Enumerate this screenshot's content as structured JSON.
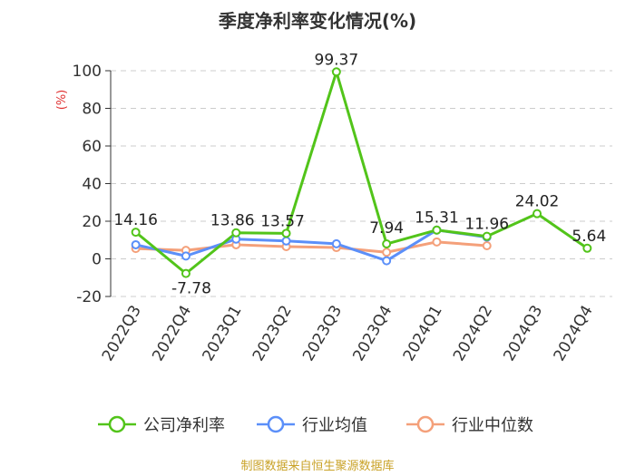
{
  "chart_data": {
    "type": "line",
    "title": "季度净利率变化情况(%)",
    "ylabel": "(%)",
    "xlabel": "",
    "ylim": [
      -20,
      100
    ],
    "yticks": [
      -20,
      0,
      20,
      40,
      60,
      80,
      100
    ],
    "categories": [
      "2022Q3",
      "2022Q4",
      "2023Q1",
      "2023Q2",
      "2023Q3",
      "2023Q4",
      "2024Q1",
      "2024Q2",
      "2024Q3",
      "2024Q4"
    ],
    "grid": true,
    "legend_position": "bottom",
    "series": [
      {
        "name": "公司净利率",
        "color": "#52c41a",
        "values": [
          14.16,
          -7.78,
          13.86,
          13.57,
          99.37,
          7.94,
          15.31,
          11.96,
          24.02,
          5.64
        ],
        "labels": [
          "14.16",
          "-7.78",
          "13.86",
          "13.57",
          "99.37",
          "7.94",
          "15.31",
          "11.96",
          "24.02",
          "5.64"
        ]
      },
      {
        "name": "行业均值",
        "color": "#5b8ff9",
        "values": [
          7.5,
          1.5,
          10.5,
          9.5,
          8.0,
          -1.0,
          15.3,
          11.5,
          null,
          null
        ]
      },
      {
        "name": "行业中位数",
        "color": "#f4a07a",
        "values": [
          5.5,
          4.5,
          7.5,
          6.5,
          6.0,
          3.5,
          9.0,
          7.0,
          null,
          null
        ]
      }
    ],
    "source": "制图数据来自恒生聚源数据库"
  }
}
